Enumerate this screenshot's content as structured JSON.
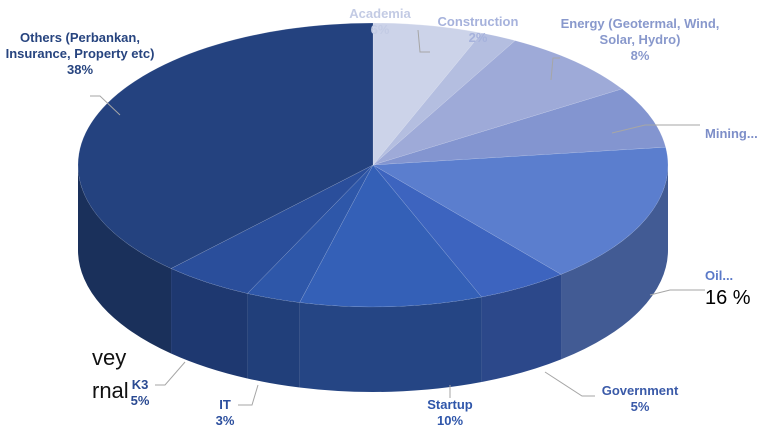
{
  "chart_data": {
    "type": "pie",
    "categories": [
      "Academia",
      "Construction",
      "Energy (Geotermal, Wind, Solar, Hydro)",
      "Mining...",
      "Oil...",
      "Government",
      "Startup",
      "IT",
      "K3",
      "Others (Perbankan, Insurance, Property etc)"
    ],
    "values": [
      6,
      2,
      8,
      7,
      16,
      5,
      10,
      3,
      5,
      38
    ],
    "value_labels": [
      "6%",
      "2%",
      "8%",
      null,
      "16 %",
      "5%",
      "10%",
      "3%",
      "5%",
      "38%"
    ],
    "colors": [
      "#ccd3e9",
      "#b4bee0",
      "#9eaad8",
      "#8395d0",
      "#5b7ece",
      "#3d64bf",
      "#3460b7",
      "#2e57a9",
      "#2a4e9b",
      "#24427f"
    ],
    "annotations": [
      "vey",
      "rnal"
    ]
  }
}
